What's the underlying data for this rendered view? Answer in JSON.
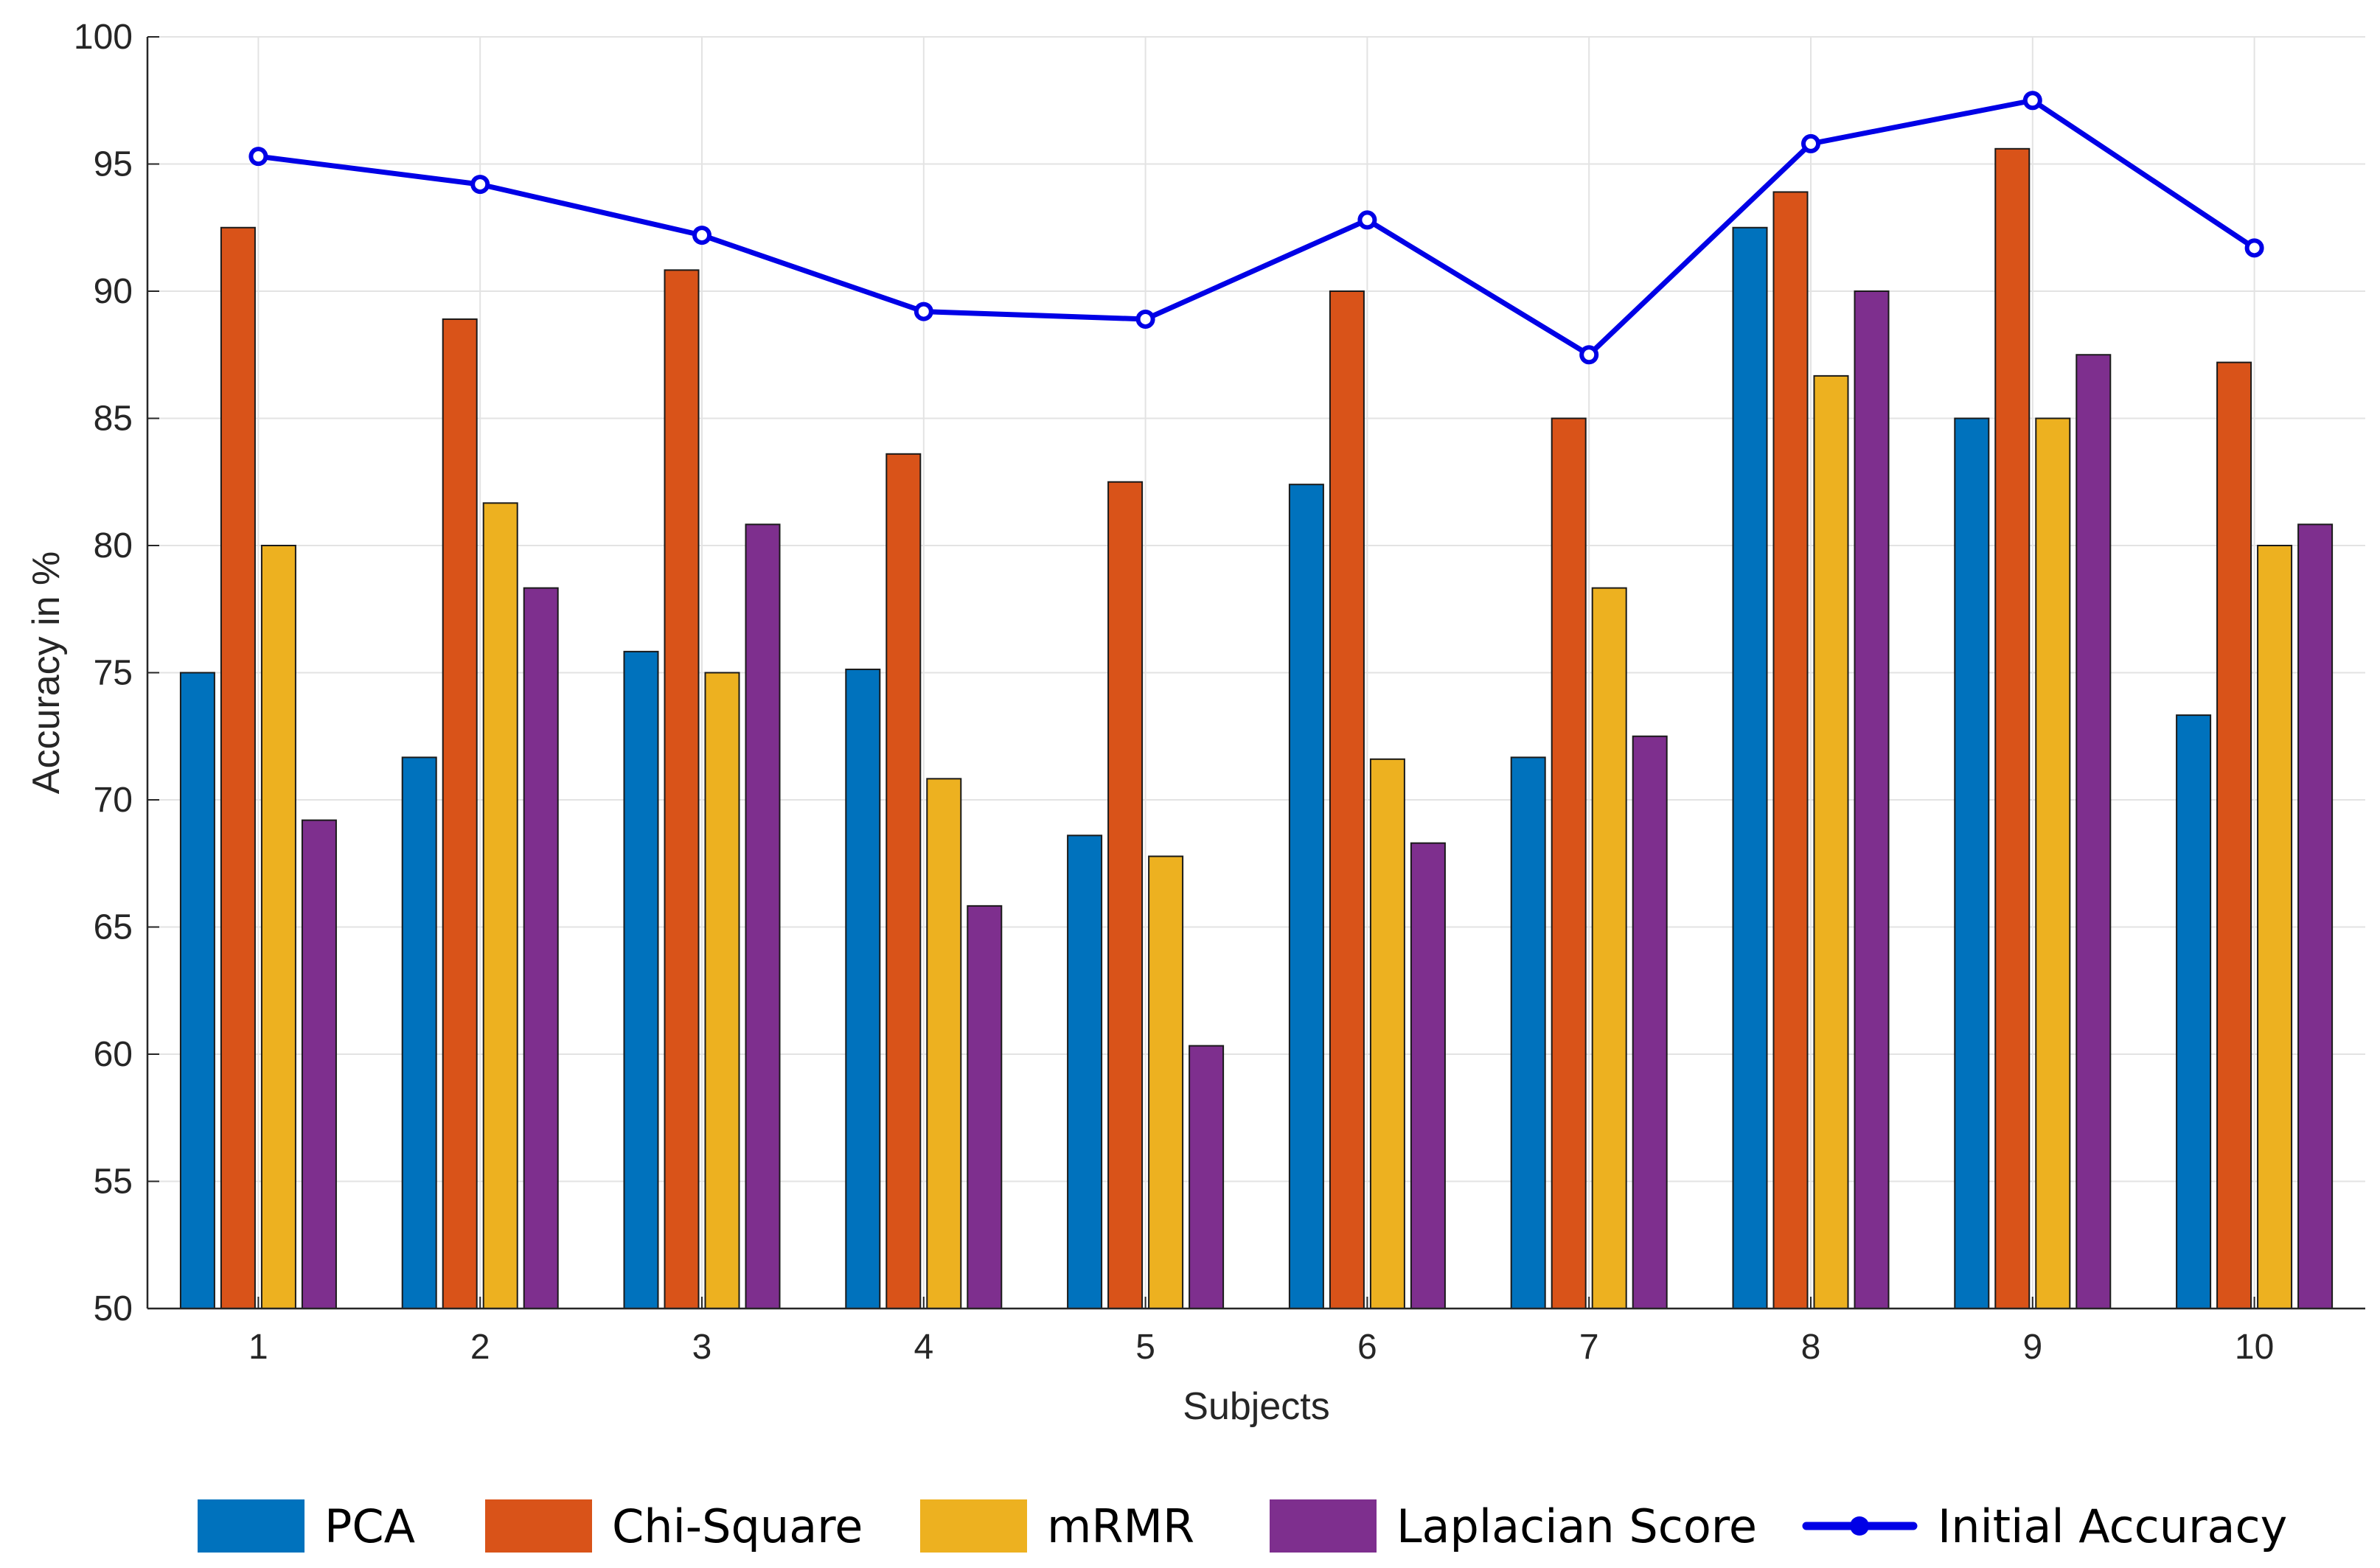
{
  "chart_data": {
    "type": "bar",
    "title": "",
    "xlabel": "Subjects",
    "ylabel": "Accuracy in %",
    "categories": [
      "1",
      "2",
      "3",
      "4",
      "5",
      "6",
      "7",
      "8",
      "9",
      "10"
    ],
    "ylim": [
      50,
      100
    ],
    "yticks": [
      "50",
      "55",
      "60",
      "65",
      "70",
      "75",
      "80",
      "85",
      "90",
      "95",
      "100"
    ],
    "grid": true,
    "legend_position": "bottom",
    "series": [
      {
        "name": "PCA",
        "color": "#0072BD",
        "values": [
          75.0,
          71.67,
          75.83,
          75.13,
          68.6,
          82.4,
          71.67,
          92.5,
          85.0,
          73.33
        ]
      },
      {
        "name": "Chi-Square",
        "color": "#D95319",
        "values": [
          92.5,
          88.9,
          90.83,
          83.6,
          82.5,
          90.0,
          85.0,
          93.9,
          95.6,
          87.2
        ]
      },
      {
        "name": "mRMR",
        "color": "#EDB120",
        "values": [
          80.0,
          81.67,
          75.0,
          70.83,
          67.78,
          71.6,
          78.33,
          86.67,
          85.0,
          80.0
        ]
      },
      {
        "name": "Laplacian Score",
        "color": "#7E2F8E",
        "values": [
          69.2,
          78.33,
          80.83,
          65.83,
          60.33,
          68.3,
          72.5,
          90.0,
          87.5,
          80.83
        ]
      }
    ],
    "line_series": {
      "name": "Initial Accuracy",
      "color": "#0000E6",
      "values": [
        95.3,
        94.2,
        92.2,
        89.2,
        88.9,
        92.8,
        87.5,
        95.8,
        97.5,
        91.7
      ]
    }
  }
}
